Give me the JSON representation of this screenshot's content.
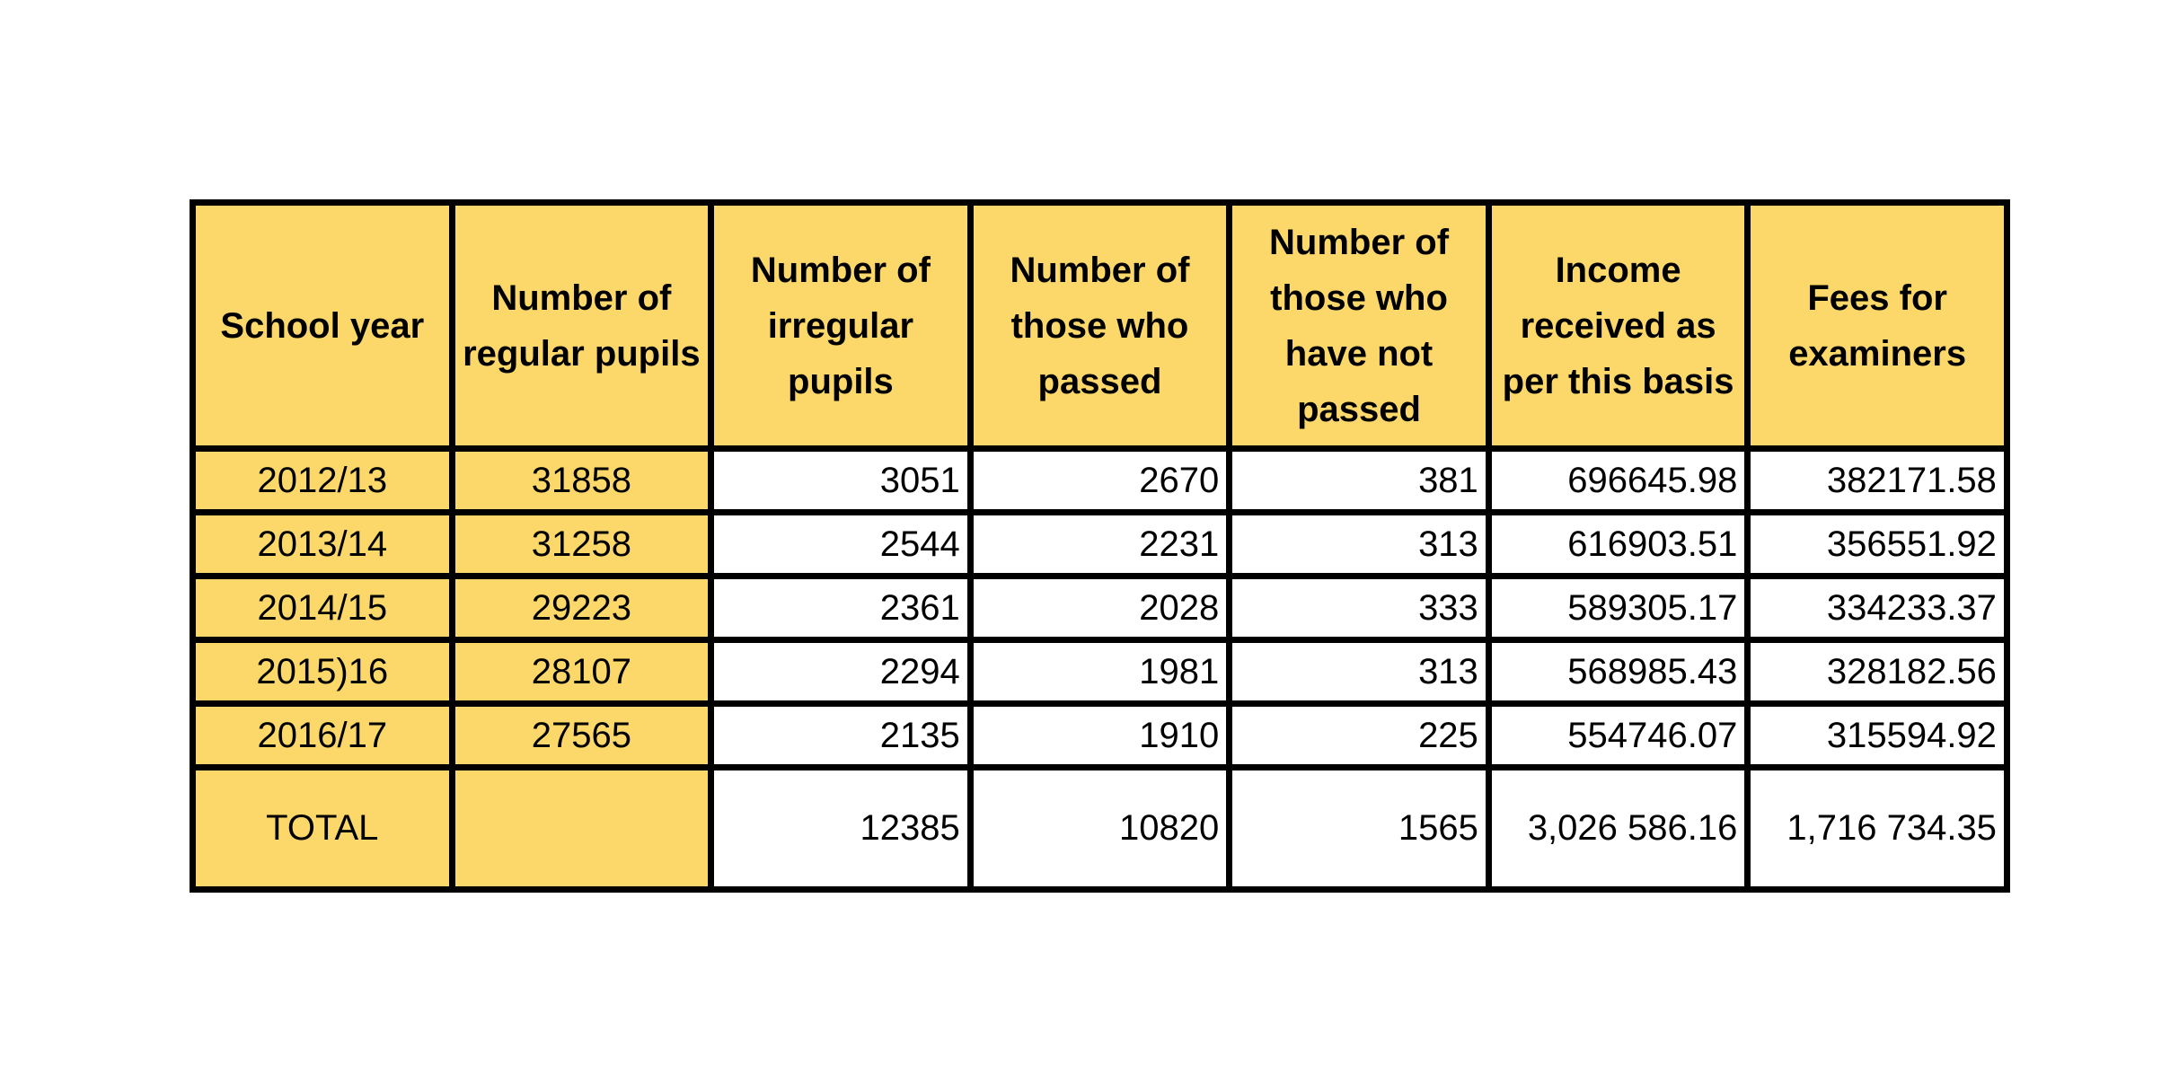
{
  "colors": {
    "header_fill": "#fcd769",
    "border": "#000000",
    "body_fill": "#ffffff"
  },
  "chart_data": {
    "type": "table",
    "columns": [
      "School year",
      "Number of regular pupils",
      "Number of irregular pupils",
      "Number of those who passed",
      "Number of those who have not passed",
      "Income received as per this basis",
      "Fees for examiners"
    ],
    "rows": [
      [
        "2012/13",
        "31858",
        "3051",
        "2670",
        "381",
        "696645.98",
        "382171.58"
      ],
      [
        "2013/14",
        "31258",
        "2544",
        "2231",
        "313",
        "616903.51",
        "356551.92"
      ],
      [
        "2014/15",
        "29223",
        "2361",
        "2028",
        "333",
        "589305.17",
        "334233.37"
      ],
      [
        "2015)16",
        "28107",
        "2294",
        "1981",
        "313",
        "568985.43",
        "328182.56"
      ],
      [
        "2016/17",
        "27565",
        "2135",
        "1910",
        "225",
        "554746.07",
        "315594.92"
      ]
    ],
    "total_row": [
      "TOTAL",
      "",
      "12385",
      "10820",
      "1565",
      "3,026 586.16",
      "1,716 734.35"
    ]
  }
}
